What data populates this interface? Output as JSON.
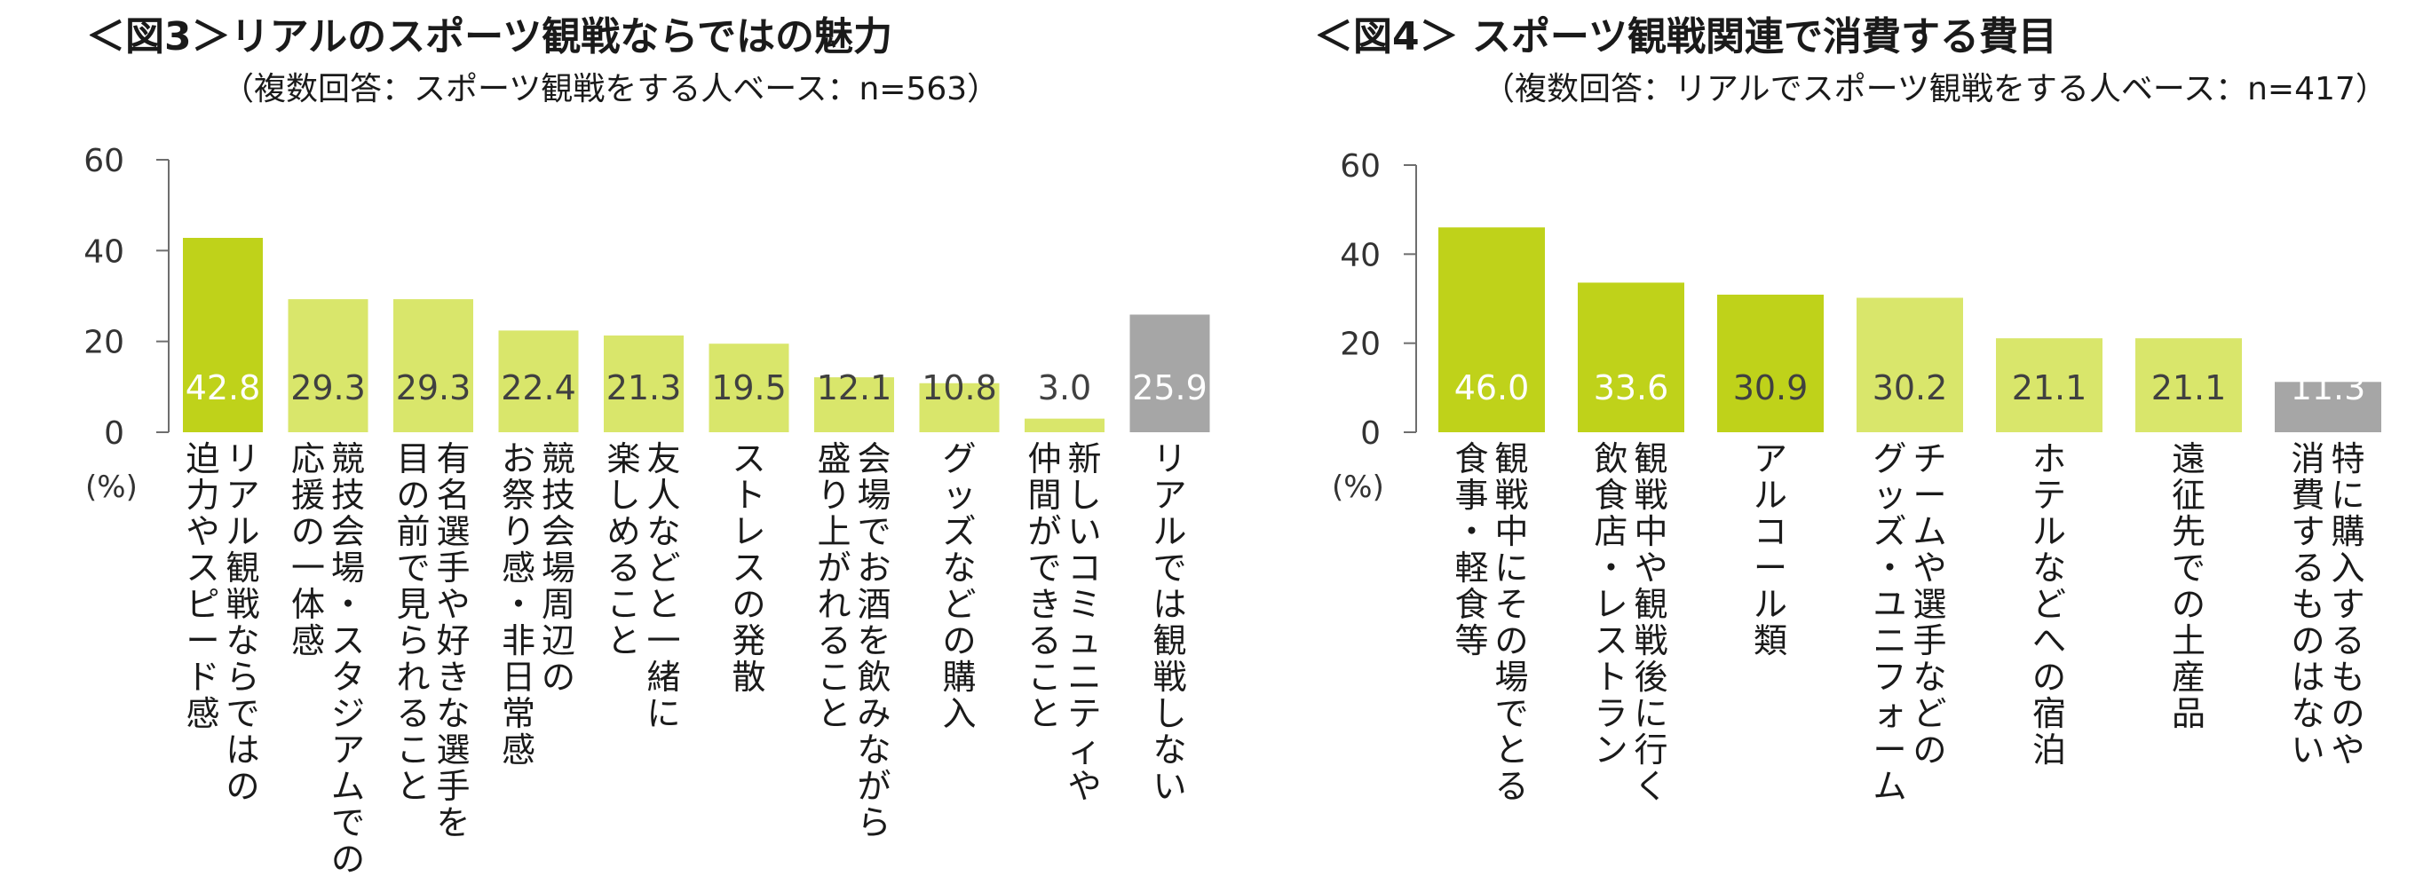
{
  "colors": {
    "dark_green": "#bfd21a",
    "light_green": "#d9e66b",
    "gray": "#a6a6a6",
    "white_label": "#ffffff",
    "dark_label": "#404040"
  },
  "chart_data": [
    {
      "type": "bar",
      "title": "＜図3＞リアルのスポーツ観戦ならではの魅力",
      "subtitle": "（複数回答：スポーツ観戦をする人ベース：n=563）",
      "ylabel": "(%)",
      "ylim": [
        0,
        60
      ],
      "yticks": [
        "0",
        "20",
        "40",
        "60"
      ],
      "categories": [
        [
          "リアル観戦ならではの",
          "迫力やスピード感"
        ],
        [
          "競技会場・スタジアムでの",
          "応援の一体感"
        ],
        [
          "有名選手や好きな選手を",
          "目の前で見られること"
        ],
        [
          "競技会場周辺の",
          "お祭り感・非日常感"
        ],
        [
          "友人などと一緒に",
          "楽しめること"
        ],
        [
          "ストレスの発散"
        ],
        [
          "会場でお酒を飲みながら",
          "盛り上がれること"
        ],
        [
          "グッズなどの購入"
        ],
        [
          "新しいコミュニティや",
          "仲間ができること"
        ],
        [
          "リアルでは観戦しない"
        ]
      ],
      "values": [
        42.8,
        29.3,
        29.3,
        22.4,
        21.3,
        19.5,
        12.1,
        10.8,
        3.0,
        25.9
      ],
      "value_labels": [
        "42.8",
        "29.3",
        "29.3",
        "22.4",
        "21.3",
        "19.5",
        "12.1",
        "10.8",
        "3.0",
        "25.9"
      ],
      "bar_colors": [
        "dark_green",
        "light_green",
        "light_green",
        "light_green",
        "light_green",
        "light_green",
        "light_green",
        "light_green",
        "light_green",
        "gray"
      ],
      "label_colors": [
        "white_label",
        "dark_label",
        "dark_label",
        "dark_label",
        "dark_label",
        "dark_label",
        "dark_label",
        "dark_label",
        "dark_label",
        "white_label"
      ]
    },
    {
      "type": "bar",
      "title": "＜図4＞ スポーツ観戦関連で消費する費目",
      "subtitle": "（複数回答：リアルでスポーツ観戦をする人ベース：n=417）",
      "ylabel": "(%)",
      "ylim": [
        0,
        60
      ],
      "yticks": [
        "0",
        "20",
        "40",
        "60"
      ],
      "categories": [
        [
          "観戦中にその場でとる",
          "食事・軽食等"
        ],
        [
          "観戦中や観戦後に行く",
          "飲食店・レストラン"
        ],
        [
          "アルコール類"
        ],
        [
          "チームや選手などの",
          "グッズ・ユニフォーム"
        ],
        [
          "ホテルなどへの宿泊"
        ],
        [
          "遠征先での土産品"
        ],
        [
          "特に購入するものや",
          "消費するものはない"
        ]
      ],
      "values": [
        46.0,
        33.6,
        30.9,
        30.2,
        21.1,
        21.1,
        11.3
      ],
      "value_labels": [
        "46.0",
        "33.6",
        "30.9",
        "30.2",
        "21.1",
        "21.1",
        "11.3"
      ],
      "bar_colors": [
        "dark_green",
        "dark_green",
        "dark_green",
        "light_green",
        "light_green",
        "light_green",
        "gray"
      ],
      "label_colors": [
        "white_label",
        "white_label",
        "dark_label",
        "dark_label",
        "dark_label",
        "dark_label",
        "white_label"
      ]
    }
  ]
}
